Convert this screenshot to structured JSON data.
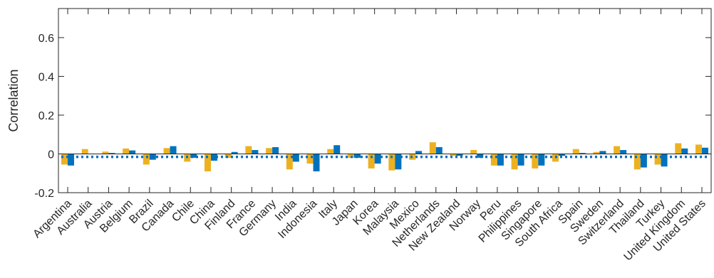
{
  "chart_data": {
    "type": "bar",
    "title": "",
    "xlabel": "",
    "ylabel": "Correlation",
    "ylim": [
      -0.2,
      0.75
    ],
    "yticks": [
      -0.2,
      0,
      0.2,
      0.4,
      0.6
    ],
    "ytick_labels": [
      "-0.2",
      "0",
      "0.2",
      "0.4",
      "0.6"
    ],
    "reference_line": {
      "value": -0.015,
      "style": "dotted",
      "color": "#0072BD"
    },
    "grid": false,
    "legend": "none",
    "categories": [
      "Argentina",
      "Australia",
      "Austria",
      "Belgium",
      "Brazil",
      "Canada",
      "Chile",
      "China",
      "Finland",
      "France",
      "Germany",
      "India",
      "Indonesia",
      "Italy",
      "Japan",
      "Korea",
      "Malaysia",
      "Mexico",
      "Netherlands",
      "New Zealand",
      "Norway",
      "Peru",
      "Philippines",
      "Singapore",
      "South Africa",
      "Spain",
      "Sweden",
      "Switzerland",
      "Thailand",
      "Turkey",
      "United Kingdom",
      "United States"
    ],
    "series": [
      {
        "color": "#EDB120",
        "values": [
          -0.055,
          0.025,
          0.012,
          0.028,
          -0.055,
          0.03,
          -0.04,
          -0.09,
          -0.02,
          0.04,
          0.03,
          -0.08,
          -0.05,
          0.025,
          -0.02,
          -0.075,
          -0.085,
          -0.03,
          0.06,
          -0.01,
          0.02,
          -0.06,
          -0.08,
          -0.075,
          -0.04,
          0.025,
          0.01,
          0.04,
          -0.08,
          -0.055,
          0.055,
          0.048
        ]
      },
      {
        "color": "#0072BD",
        "values": [
          -0.06,
          0.0,
          0.005,
          0.018,
          -0.03,
          0.04,
          -0.02,
          -0.035,
          0.01,
          0.02,
          0.035,
          -0.04,
          -0.09,
          0.045,
          -0.02,
          -0.05,
          -0.08,
          0.015,
          0.035,
          -0.01,
          -0.02,
          -0.06,
          -0.06,
          -0.06,
          -0.01,
          0.005,
          0.015,
          0.02,
          -0.07,
          -0.065,
          0.028,
          0.032
        ]
      }
    ]
  }
}
